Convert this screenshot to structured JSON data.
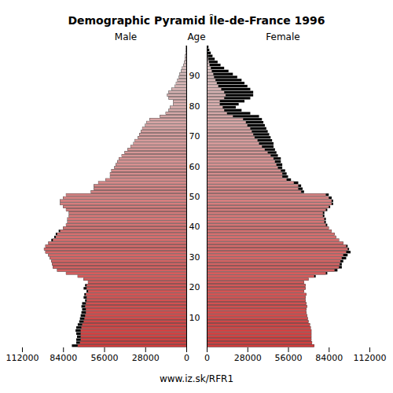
{
  "chart_data": {
    "type": "bar",
    "orientation": "horizontal",
    "title": "Demographic Pyramid Île-de-France 1996",
    "ylabel": "Age",
    "caption": "www.iz.sk/RFR1",
    "categories": [
      0,
      1,
      2,
      3,
      4,
      5,
      6,
      7,
      8,
      9,
      10,
      11,
      12,
      13,
      14,
      15,
      16,
      17,
      18,
      19,
      20,
      21,
      22,
      23,
      24,
      25,
      26,
      27,
      28,
      29,
      30,
      31,
      32,
      33,
      34,
      35,
      36,
      37,
      38,
      39,
      40,
      41,
      42,
      43,
      44,
      45,
      46,
      47,
      48,
      49,
      50,
      51,
      52,
      53,
      54,
      55,
      56,
      57,
      58,
      59,
      60,
      61,
      62,
      63,
      64,
      65,
      66,
      67,
      68,
      69,
      70,
      71,
      72,
      73,
      74,
      75,
      76,
      77,
      78,
      79,
      80,
      81,
      82,
      83,
      84,
      85,
      86,
      87,
      88,
      89,
      90,
      91,
      92,
      93,
      94,
      95,
      96,
      97,
      98,
      99
    ],
    "series": [
      {
        "name": "Male",
        "color": "#d23c3c",
        "values": [
          78000,
          75000,
          75000,
          74500,
          75000,
          75500,
          75000,
          74000,
          73000,
          72500,
          72000,
          71500,
          71000,
          71500,
          71000,
          69000,
          70000,
          69500,
          68000,
          70000,
          69000,
          67000,
          70000,
          74000,
          82000,
          88000,
          91000,
          91500,
          92000,
          93000,
          94000,
          96000,
          97000,
          96000,
          94000,
          92000,
          90000,
          89000,
          87000,
          84000,
          82000,
          81000,
          81000,
          80000,
          80000,
          82000,
          84000,
          86000,
          86000,
          84000,
          82000,
          65000,
          63000,
          63000,
          60000,
          55000,
          52000,
          52000,
          51000,
          49000,
          48000,
          47000,
          46000,
          44000,
          42000,
          40000,
          38000,
          36000,
          35000,
          33000,
          32000,
          31000,
          30000,
          28000,
          27000,
          25000,
          18000,
          14000,
          12000,
          11000,
          9000,
          9000,
          12000,
          13000,
          12000,
          10000,
          8000,
          7000,
          6000,
          5000,
          4500,
          3500,
          2800,
          2000,
          1500,
          1000,
          700,
          500,
          300,
          200
        ]
      },
      {
        "name": "Female",
        "color": "#d23c3c",
        "values": [
          74000,
          72500,
          72000,
          72000,
          72000,
          72000,
          71500,
          71000,
          70000,
          69500,
          69000,
          68500,
          68500,
          69000,
          68500,
          68000,
          68000,
          68500,
          67000,
          68000,
          68000,
          67000,
          70000,
          75000,
          83000,
          90000,
          93000,
          93000,
          94000,
          96000,
          97000,
          99000,
          98000,
          97000,
          94000,
          91000,
          89000,
          88000,
          86000,
          84000,
          83000,
          82000,
          82000,
          81000,
          81000,
          83000,
          85000,
          87000,
          87000,
          86000,
          84000,
          67000,
          66000,
          65000,
          63000,
          58000,
          56000,
          55000,
          54000,
          52000,
          52000,
          51000,
          51000,
          49000,
          48000,
          47000,
          46000,
          46000,
          45000,
          44000,
          43000,
          42000,
          41000,
          40000,
          39000,
          38000,
          36000,
          30000,
          24000,
          20000,
          22000,
          26000,
          30000,
          32000,
          32000,
          30000,
          28000,
          26000,
          24000,
          21000,
          18000,
          15000,
          12000,
          9500,
          7500,
          5500,
          4000,
          2800,
          1800,
          1200
        ]
      }
    ],
    "xlim": [
      0,
      112000
    ],
    "xticks": [
      0,
      28000,
      56000,
      84000,
      112000
    ],
    "ylim": [
      0,
      100
    ],
    "yticks": [
      10,
      20,
      30,
      40,
      50,
      60,
      70,
      80,
      90
    ]
  }
}
